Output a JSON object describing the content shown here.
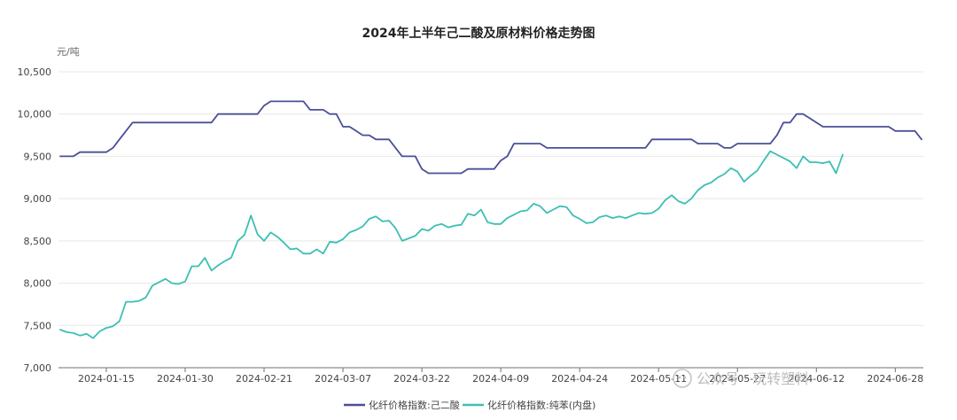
{
  "chart_data": {
    "type": "line",
    "title": "2024年上半年己二酸及原材料价格走势图",
    "ylabel": "元/吨",
    "ylim": [
      7000,
      10500
    ],
    "yticks": [
      7000,
      7500,
      8000,
      8500,
      9000,
      9500,
      10000,
      10500
    ],
    "ytick_labels": [
      "7,000",
      "7,500",
      "8,000",
      "8,500",
      "9,000",
      "9,500",
      "10,000",
      "10,500"
    ],
    "x_tick_labels": [
      "2024-01-15",
      "2024-01-30",
      "2024-02-21",
      "2024-03-07",
      "2024-03-22",
      "2024-04-09",
      "2024-04-24",
      "2024-05-11",
      "2024-05-27",
      "2024-06-12",
      "2024-06-28"
    ],
    "x_tick_index": [
      7,
      19,
      31,
      43,
      55,
      67,
      79,
      91,
      103,
      115,
      127
    ],
    "grid": true,
    "legend_position": "bottom-center",
    "series": [
      {
        "name": "化纤价格指数:己二酸",
        "color": "#4a4f97",
        "values": [
          9500,
          9500,
          9500,
          9550,
          9550,
          9550,
          9550,
          9550,
          9600,
          9700,
          9800,
          9900,
          9900,
          9900,
          9900,
          9900,
          9900,
          9900,
          9900,
          9900,
          9900,
          9900,
          9900,
          9900,
          10000,
          10000,
          10000,
          10000,
          10000,
          10000,
          10000,
          10100,
          10150,
          10150,
          10150,
          10150,
          10150,
          10150,
          10050,
          10050,
          10050,
          10000,
          10000,
          9850,
          9850,
          9800,
          9750,
          9750,
          9700,
          9700,
          9700,
          9600,
          9500,
          9500,
          9500,
          9350,
          9300,
          9300,
          9300,
          9300,
          9300,
          9300,
          9350,
          9350,
          9350,
          9350,
          9350,
          9450,
          9500,
          9650,
          9650,
          9650,
          9650,
          9650,
          9600,
          9600,
          9600,
          9600,
          9600,
          9600,
          9600,
          9600,
          9600,
          9600,
          9600,
          9600,
          9600,
          9600,
          9600,
          9600,
          9700,
          9700,
          9700,
          9700,
          9700,
          9700,
          9700,
          9650,
          9650,
          9650,
          9650,
          9600,
          9600,
          9650,
          9650,
          9650,
          9650,
          9650,
          9650,
          9750,
          9900,
          9900,
          10000,
          10000,
          9950,
          9900,
          9850,
          9850,
          9850,
          9850,
          9850,
          9850,
          9850,
          9850,
          9850,
          9850,
          9850,
          9800,
          9800,
          9800,
          9800,
          9700
        ]
      },
      {
        "name": "化纤价格指数:纯苯(内盘)",
        "color": "#3dbfb3",
        "values": [
          7450,
          7420,
          7410,
          7380,
          7400,
          7350,
          7430,
          7470,
          7490,
          7550,
          7780,
          7780,
          7790,
          7830,
          7970,
          8010,
          8050,
          8000,
          7990,
          8020,
          8200,
          8200,
          8300,
          8150,
          8210,
          8260,
          8300,
          8500,
          8570,
          8800,
          8580,
          8500,
          8600,
          8550,
          8480,
          8400,
          8410,
          8350,
          8350,
          8400,
          8350,
          8490,
          8480,
          8520,
          8600,
          8630,
          8670,
          8760,
          8790,
          8730,
          8740,
          8650,
          8500,
          8530,
          8560,
          8640,
          8620,
          8680,
          8700,
          8660,
          8680,
          8690,
          8820,
          8800,
          8870,
          8720,
          8700,
          8700,
          8770,
          8810,
          8850,
          8860,
          8940,
          8910,
          8830,
          8870,
          8910,
          8900,
          8800,
          8760,
          8710,
          8720,
          8780,
          8800,
          8770,
          8790,
          8770,
          8800,
          8830,
          8820,
          8830,
          8880,
          8980,
          9040,
          8970,
          8940,
          9000,
          9100,
          9160,
          9190,
          9250,
          9290,
          9360,
          9320,
          9200,
          9270,
          9330,
          9450,
          9560,
          9520,
          9480,
          9440,
          9360,
          9500,
          9430,
          9430,
          9420,
          9440,
          9300,
          9520
        ]
      }
    ]
  },
  "watermark": {
    "text": "公众号 · 玩转塑料"
  }
}
